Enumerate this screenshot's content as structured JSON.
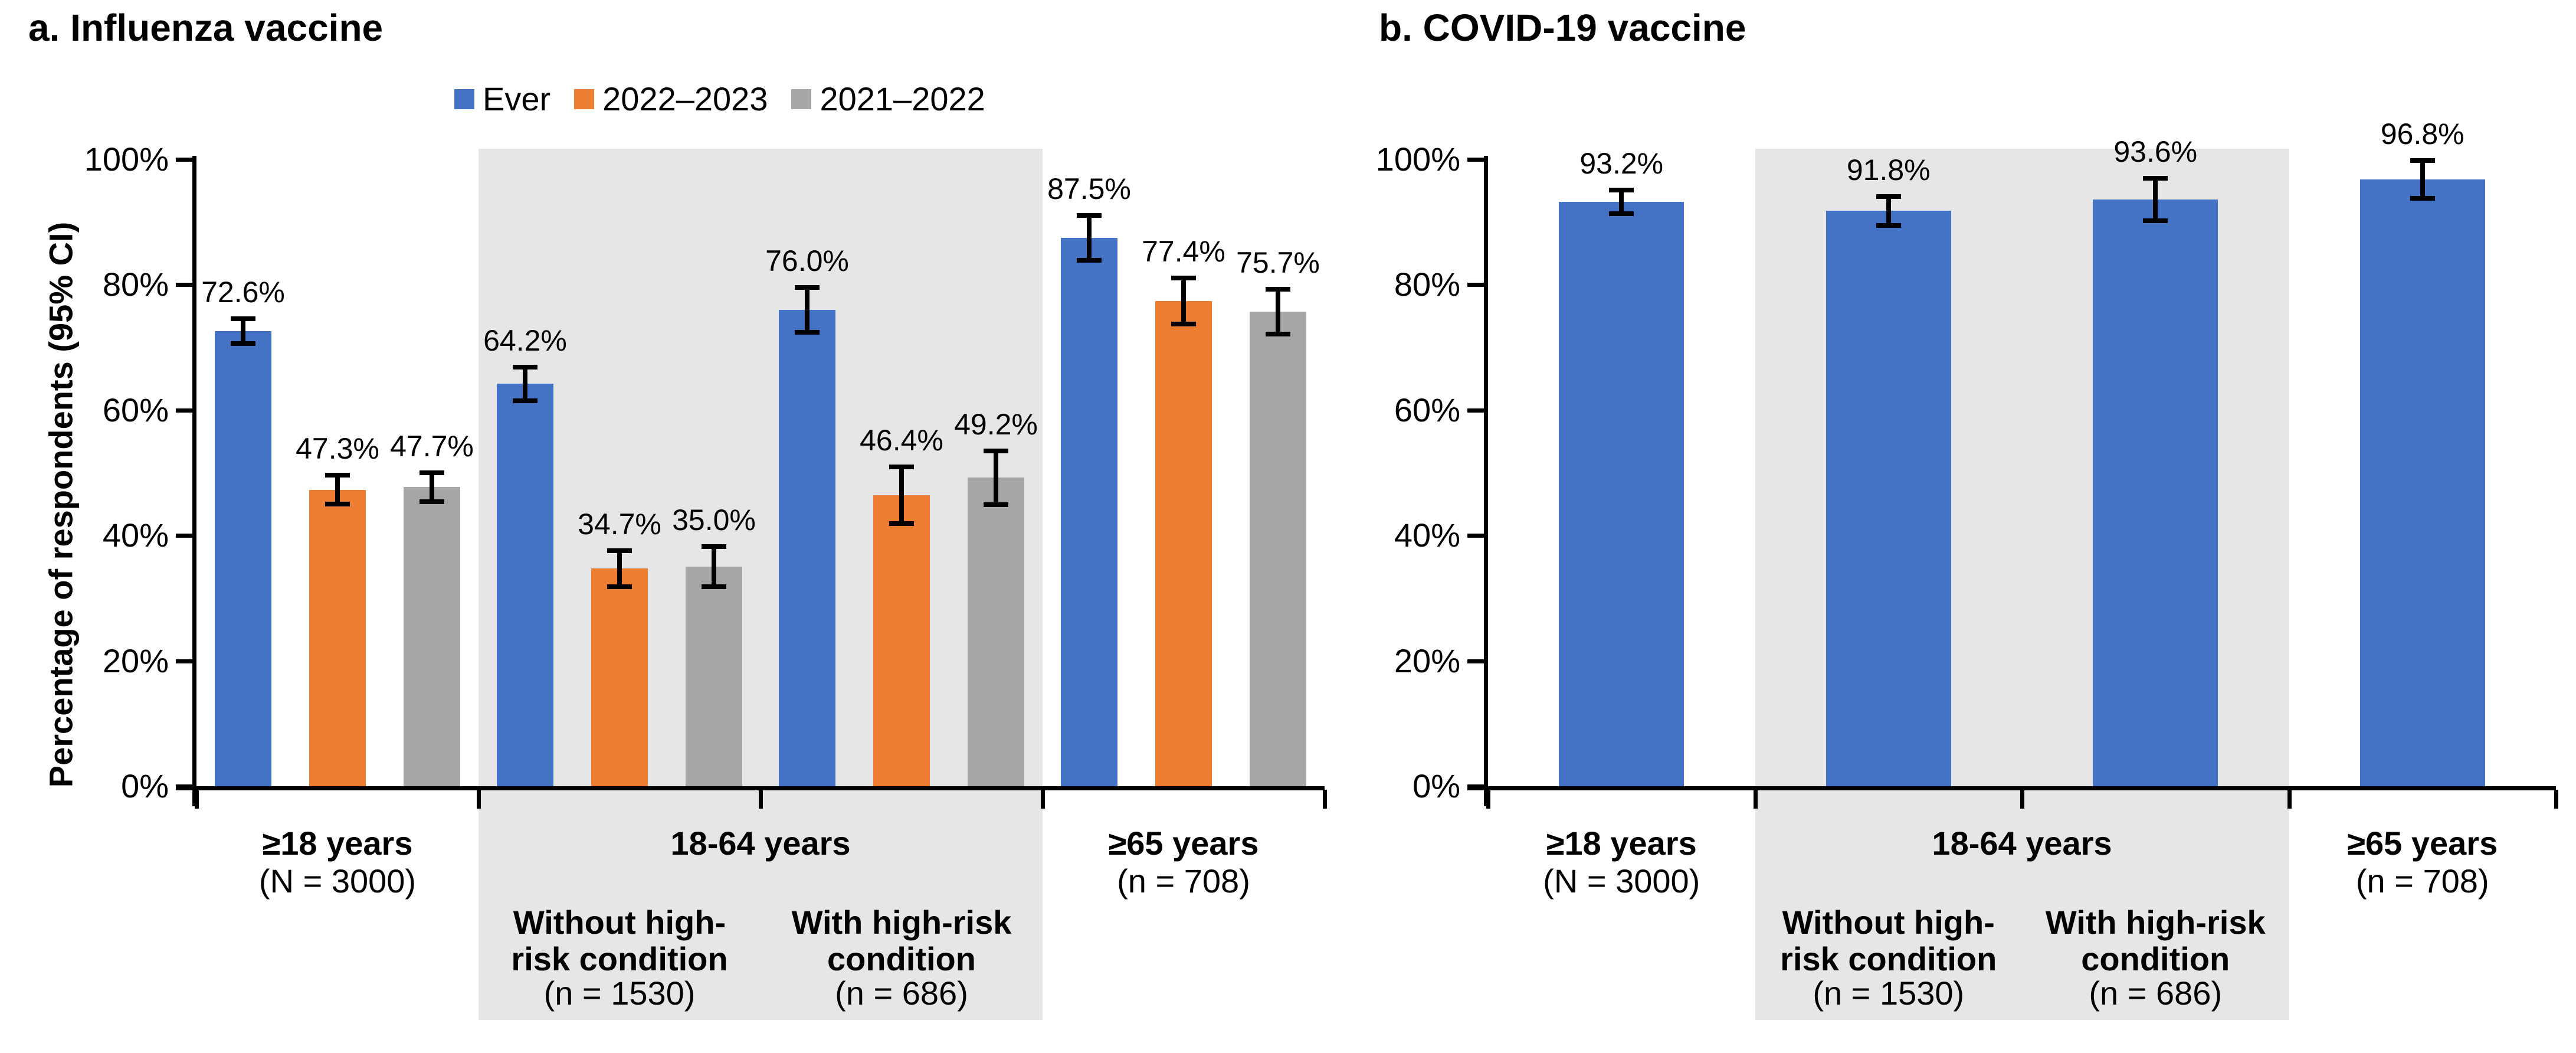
{
  "figure": {
    "description": "Two-panel bar chart of vaccination coverage by age group",
    "colors": {
      "bar_blue": "#4472C4",
      "bar_orange": "#ED7D31",
      "bar_gray": "#A6A6A6",
      "highlight_band": "#E6E6E6",
      "axis": "#000000"
    }
  },
  "chart_data": [
    {
      "type": "bar",
      "panel": "a",
      "title": "a. Influenza vaccine",
      "ylabel": "Percentage of respondents (95% CI)",
      "ylim": [
        0,
        100
      ],
      "ytick_labels": [
        "0%",
        "20%",
        "40%",
        "60%",
        "80%",
        "100%"
      ],
      "legend_position": "top",
      "error_bars": "95% CI whiskers",
      "categories": [
        {
          "label": "≥18 years",
          "sublabel": "(N = 3000)"
        },
        {
          "label": "Without high-risk condition",
          "sublabel": "(n = 1530)"
        },
        {
          "label": "With high-risk condition",
          "sublabel": "(n = 686)"
        },
        {
          "label": "≥65 years",
          "sublabel": "(n = 708)"
        }
      ],
      "highlight_band": {
        "label": "18-64 years",
        "color": "#E6E6E6",
        "covers": [
          "Without high-risk condition",
          "With high-risk condition"
        ]
      },
      "series": [
        {
          "name": "Ever",
          "color": "#4472C4",
          "values": [
            72.6,
            64.2,
            76.0,
            87.5
          ],
          "labels": [
            "72.6%",
            "64.2%",
            "76.0%",
            "87.5%"
          ],
          "ci_half": [
            2.0,
            2.7,
            3.6,
            3.6
          ]
        },
        {
          "name": "2022–2023",
          "color": "#ED7D31",
          "values": [
            47.3,
            34.7,
            46.4,
            77.4
          ],
          "labels": [
            "47.3%",
            "34.7%",
            "46.4%",
            "77.4%"
          ],
          "ci_half": [
            2.3,
            2.9,
            4.5,
            3.7
          ]
        },
        {
          "name": "2021–2022",
          "color": "#A6A6A6",
          "values": [
            47.7,
            35.0,
            49.2,
            75.7
          ],
          "labels": [
            "47.7%",
            "35.0%",
            "49.2%",
            "75.7%"
          ],
          "ci_half": [
            2.3,
            3.2,
            4.3,
            3.6
          ]
        }
      ]
    },
    {
      "type": "bar",
      "panel": "b",
      "title": "b. COVID-19 vaccine",
      "ylim": [
        0,
        100
      ],
      "ytick_labels": [
        "0%",
        "20%",
        "40%",
        "60%",
        "80%",
        "100%"
      ],
      "error_bars": "95% CI whiskers",
      "categories": [
        {
          "label": "≥18 years",
          "sublabel": "(N = 3000)"
        },
        {
          "label": "Without high-risk condition",
          "sublabel": "(n = 1530)"
        },
        {
          "label": "With high-risk condition",
          "sublabel": "(n = 686)"
        },
        {
          "label": "≥65 years",
          "sublabel": "(n = 708)"
        }
      ],
      "highlight_band": {
        "label": "18-64 years",
        "color": "#E6E6E6",
        "covers": [
          "Without high-risk condition",
          "With high-risk condition"
        ]
      },
      "series": [
        {
          "name": "Ever",
          "color": "#4472C4",
          "values": [
            93.2,
            91.8,
            93.6,
            96.8
          ],
          "labels": [
            "93.2%",
            "91.8%",
            "93.6%",
            "96.8%"
          ],
          "ci_half": [
            1.9,
            2.3,
            3.4,
            3.0
          ]
        }
      ]
    }
  ]
}
